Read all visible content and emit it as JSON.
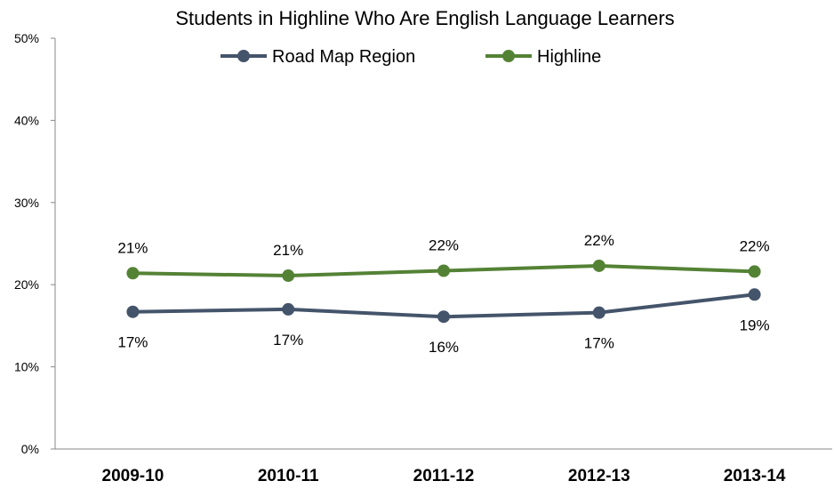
{
  "chart_data": {
    "type": "line",
    "title": "Students in Highline Who Are English Language Learners",
    "categories": [
      "2009-10",
      "2010-11",
      "2011-12",
      "2012-13",
      "2013-14"
    ],
    "series": [
      {
        "name": "Road Map Region",
        "color": "#44546a",
        "values": [
          16.7,
          17.0,
          16.1,
          16.6,
          18.8
        ],
        "labels": [
          "17%",
          "17%",
          "16%",
          "17%",
          "19%"
        ],
        "label_position": "below"
      },
      {
        "name": "Highline",
        "color": "#548235",
        "values": [
          21.4,
          21.1,
          21.7,
          22.3,
          21.6
        ],
        "labels": [
          "21%",
          "21%",
          "22%",
          "22%",
          "22%"
        ],
        "label_position": "above"
      }
    ],
    "ylim": [
      0,
      50
    ],
    "yticks": [
      "0%",
      "10%",
      "20%",
      "30%",
      "40%",
      "50%"
    ],
    "ytick_values": [
      0,
      10,
      20,
      30,
      40,
      50
    ],
    "xlabel": "",
    "ylabel": "",
    "grid": false,
    "legend": "top-center"
  }
}
